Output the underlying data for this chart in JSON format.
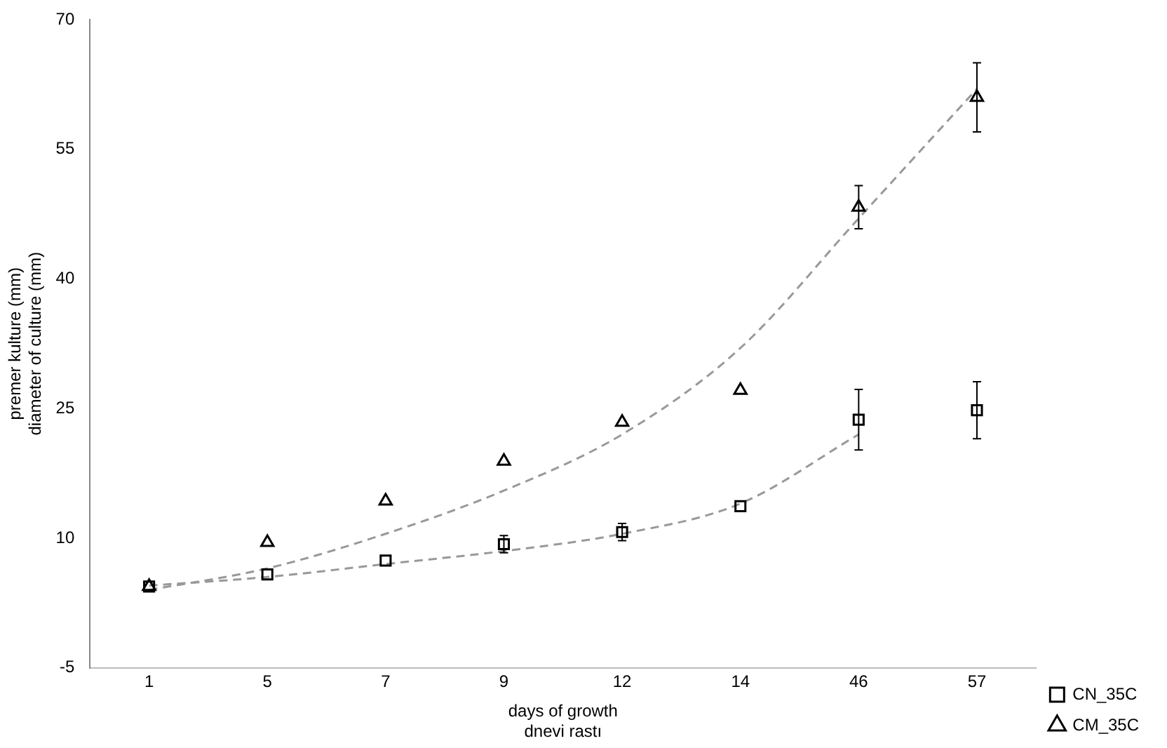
{
  "chart_data": {
    "type": "scatter",
    "xlabel": "days of growth\ndnevi rastı",
    "ylabel": "premer kulture (mm)\ndiameter of culture (mm)",
    "categories": [
      "1",
      "5",
      "7",
      "9",
      "12",
      "14",
      "46",
      "57"
    ],
    "series": [
      {
        "name": "CN_35C",
        "marker": "square",
        "color": "#000000",
        "values": [
          4.4,
          5.8,
          7.4,
          9.3,
          10.7,
          13.7,
          23.7,
          24.8
        ],
        "errors": [
          null,
          null,
          null,
          1,
          1,
          null,
          3.5,
          3.3
        ]
      },
      {
        "name": "CM_35C",
        "marker": "triangle",
        "color": "#000000",
        "values": [
          4.4,
          9.5,
          14.3,
          18.9,
          23.4,
          27.1,
          48.3,
          61.0
        ],
        "errors": [
          null,
          null,
          null,
          null,
          null,
          null,
          2.5,
          4
        ]
      },
      {
        "type": "line",
        "line_style": "dashed",
        "color": "#999999",
        "values": [
          4.5,
          5.5,
          7,
          8.5,
          10.5,
          14,
          22,
          null
        ]
      },
      {
        "type": "line",
        "line_style": "dashed",
        "color": "#999999",
        "values": [
          4,
          6.5,
          10.5,
          15.5,
          22,
          32,
          47,
          62
        ]
      }
    ],
    "ylim": [
      -5,
      70
    ],
    "yticks": [
      -5,
      10,
      25,
      40,
      55,
      70
    ],
    "grid": false,
    "legend": "right"
  }
}
